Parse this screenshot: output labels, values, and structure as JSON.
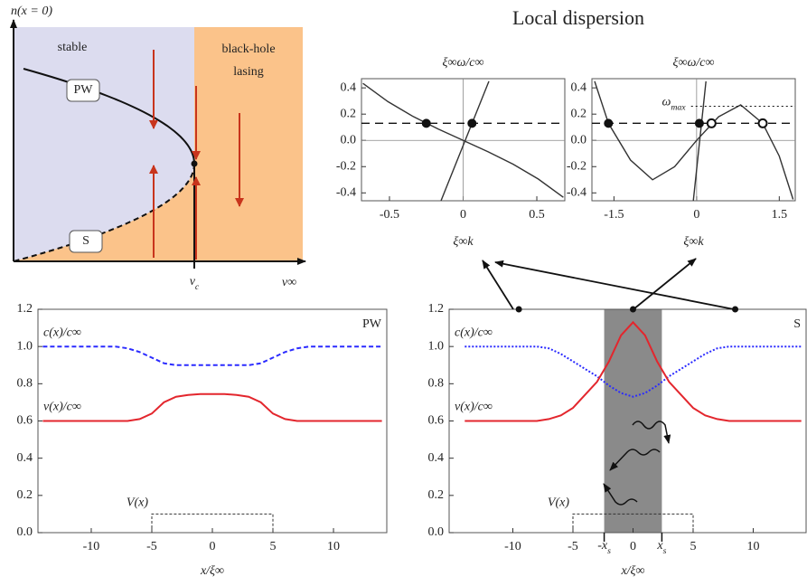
{
  "header": {
    "title": "Local dispersion"
  },
  "chart_data": [
    {
      "type": "phase",
      "y_label": "n(x = 0)",
      "x_label": "v∞",
      "x_tick": {
        "base": "v",
        "sub": "c"
      },
      "regions": [
        [
          "stable"
        ],
        [
          "black-hole",
          "lasing"
        ]
      ],
      "branches": [
        "PW",
        "S"
      ]
    },
    {
      "type": "dispersion",
      "title": "ξ∞ω/c∞",
      "x_label": "ξ∞k",
      "xlim": [
        -0.69,
        0.69
      ],
      "ylim": [
        -0.46,
        0.47
      ],
      "xticks": [
        -0.5,
        0,
        0.5
      ],
      "yticks": [
        -0.4,
        -0.2,
        {
          "value": 0,
          "label": "0.0"
        },
        0.2,
        0.4
      ],
      "zero_lines": true,
      "series": [
        {
          "color": "#333333",
          "x": [
            -0.68,
            -0.51,
            -0.34,
            -0.17,
            0,
            0.17,
            0.34,
            0.51,
            0.68
          ],
          "values": [
            0.434,
            0.295,
            0.182,
            0.087,
            0,
            -0.087,
            -0.182,
            -0.295,
            -0.434
          ]
        },
        {
          "color": "#333333",
          "x": [
            -0.15,
            0.175
          ],
          "values": [
            -0.46,
            0.45
          ]
        }
      ],
      "level": 0.13,
      "points": {
        "x": [
          -0.25,
          0.06
        ],
        "values": [
          0.13,
          0.13
        ]
      }
    },
    {
      "type": "dispersion",
      "title": "ξ∞ω/c∞",
      "x_label": "ξ∞k",
      "xlim": [
        -1.9,
        1.79
      ],
      "ylim": [
        -0.46,
        0.47
      ],
      "xticks": [
        -1.5,
        0,
        1.5
      ],
      "yticks": [
        -0.4,
        -0.2,
        {
          "value": 0,
          "label": "0.0"
        },
        0.2,
        0.4
      ],
      "zero_lines": true,
      "series": [
        {
          "color": "#333333",
          "x": [
            -1.85,
            -1.6,
            -1.2,
            -0.8,
            -0.4,
            0,
            0.4,
            0.8,
            1.2,
            1.5,
            1.75
          ],
          "values": [
            0.45,
            0.13,
            -0.15,
            -0.3,
            -0.2,
            0,
            0.18,
            0.27,
            0.13,
            -0.12,
            -0.45
          ]
        },
        {
          "color": "#333333",
          "x": [
            -0.06,
            0.17
          ],
          "values": [
            -0.46,
            0.45
          ]
        }
      ],
      "level": 0.13,
      "points": {
        "x": [
          -1.6,
          0.05
        ],
        "values": [
          0.13,
          0.13
        ]
      },
      "open_points": {
        "x": [
          0.27,
          1.2
        ],
        "values": [
          0.13,
          0.13
        ]
      },
      "omega_max": {
        "label": {
          "base": "ω",
          "sub": "max"
        },
        "value": 0.26
      }
    },
    {
      "type": "profile",
      "x_label": "x/ξ∞",
      "tag": "PW",
      "xlim": [
        -14.4,
        14.4
      ],
      "ylim": [
        0,
        1.2
      ],
      "xticks": [
        -10,
        -5,
        0,
        5,
        10
      ],
      "yticks": [
        {
          "value": 0,
          "label": "0.0"
        },
        0.2,
        0.4,
        0.6,
        0.8,
        {
          "value": 1,
          "label": "1.0"
        },
        1.2
      ],
      "x": [
        -14,
        -13,
        -12,
        -11,
        -10,
        -9,
        -8,
        -7,
        -6,
        -5,
        -4,
        -3,
        -2,
        -1,
        0,
        1,
        2,
        3,
        4,
        5,
        6,
        7,
        8,
        9,
        10,
        11,
        12,
        13,
        14
      ],
      "series": [
        {
          "name": "c(x)/c∞",
          "color": "#2b2bff",
          "style": "dashed",
          "values": [
            1,
            1,
            1,
            1,
            1,
            1,
            1,
            0.99,
            0.97,
            0.94,
            0.91,
            0.9,
            0.9,
            0.9,
            0.9,
            0.9,
            0.9,
            0.9,
            0.91,
            0.94,
            0.97,
            0.99,
            1,
            1,
            1,
            1,
            1,
            1,
            1
          ]
        },
        {
          "name": "v(x)/c∞",
          "color": "#e3262d",
          "style": "solid",
          "values": [
            0.6,
            0.6,
            0.6,
            0.6,
            0.6,
            0.6,
            0.6,
            0.6,
            0.61,
            0.64,
            0.7,
            0.73,
            0.74,
            0.745,
            0.745,
            0.745,
            0.74,
            0.73,
            0.7,
            0.64,
            0.61,
            0.6,
            0.6,
            0.6,
            0.6,
            0.6,
            0.6,
            0.6,
            0.6
          ]
        }
      ],
      "potential": {
        "name": "V(x)",
        "x": [
          -5,
          -5,
          5,
          5
        ],
        "values": [
          0,
          0.1,
          0.1,
          0
        ]
      }
    },
    {
      "type": "profile",
      "x_label": "x/ξ∞",
      "tag": "S",
      "xlim": [
        -15.3,
        14.4
      ],
      "ylim": [
        0,
        1.2
      ],
      "xticks": [
        -10,
        -5,
        0,
        5,
        10
      ],
      "yticks": [
        {
          "value": 0,
          "label": "0.0"
        },
        0.2,
        0.4,
        0.6,
        0.8,
        {
          "value": 1,
          "label": "1.0"
        },
        1.2
      ],
      "x": [
        -14,
        -13,
        -12,
        -11,
        -10,
        -9,
        -8,
        -7,
        -6,
        -5,
        -4,
        -3,
        -2,
        -1,
        0,
        1,
        2,
        3,
        4,
        5,
        6,
        7,
        8,
        9,
        10,
        11,
        12,
        13,
        14
      ],
      "series": [
        {
          "name": "c(x)/c∞",
          "color": "#2b2bff",
          "style": "dotted",
          "values": [
            1,
            1,
            1,
            1,
            1,
            1,
            1,
            0.99,
            0.96,
            0.92,
            0.88,
            0.84,
            0.79,
            0.75,
            0.73,
            0.75,
            0.79,
            0.84,
            0.88,
            0.92,
            0.96,
            0.99,
            1,
            1,
            1,
            1,
            1,
            1,
            1
          ]
        },
        {
          "name": "v(x)/c∞",
          "color": "#e3262d",
          "style": "solid",
          "values": [
            0.6,
            0.6,
            0.6,
            0.6,
            0.6,
            0.6,
            0.6,
            0.61,
            0.63,
            0.67,
            0.74,
            0.81,
            0.92,
            1.06,
            1.13,
            1.06,
            0.92,
            0.81,
            0.74,
            0.67,
            0.63,
            0.61,
            0.6,
            0.6,
            0.6,
            0.6,
            0.6,
            0.6,
            0.6
          ]
        }
      ],
      "potential": {
        "name": "V(x)",
        "x": [
          -5,
          -5,
          5,
          5
        ],
        "values": [
          0,
          0.1,
          0.1,
          0
        ]
      },
      "band": {
        "x": [
          -2.4,
          2.4
        ],
        "labels": [
          {
            "base": "-x",
            "sub": "s"
          },
          {
            "base": "x",
            "sub": "s"
          }
        ]
      },
      "probes": {
        "x": [
          -9.5,
          0,
          8.5
        ],
        "values": [
          1.2,
          1.2,
          1.2
        ]
      }
    }
  ]
}
